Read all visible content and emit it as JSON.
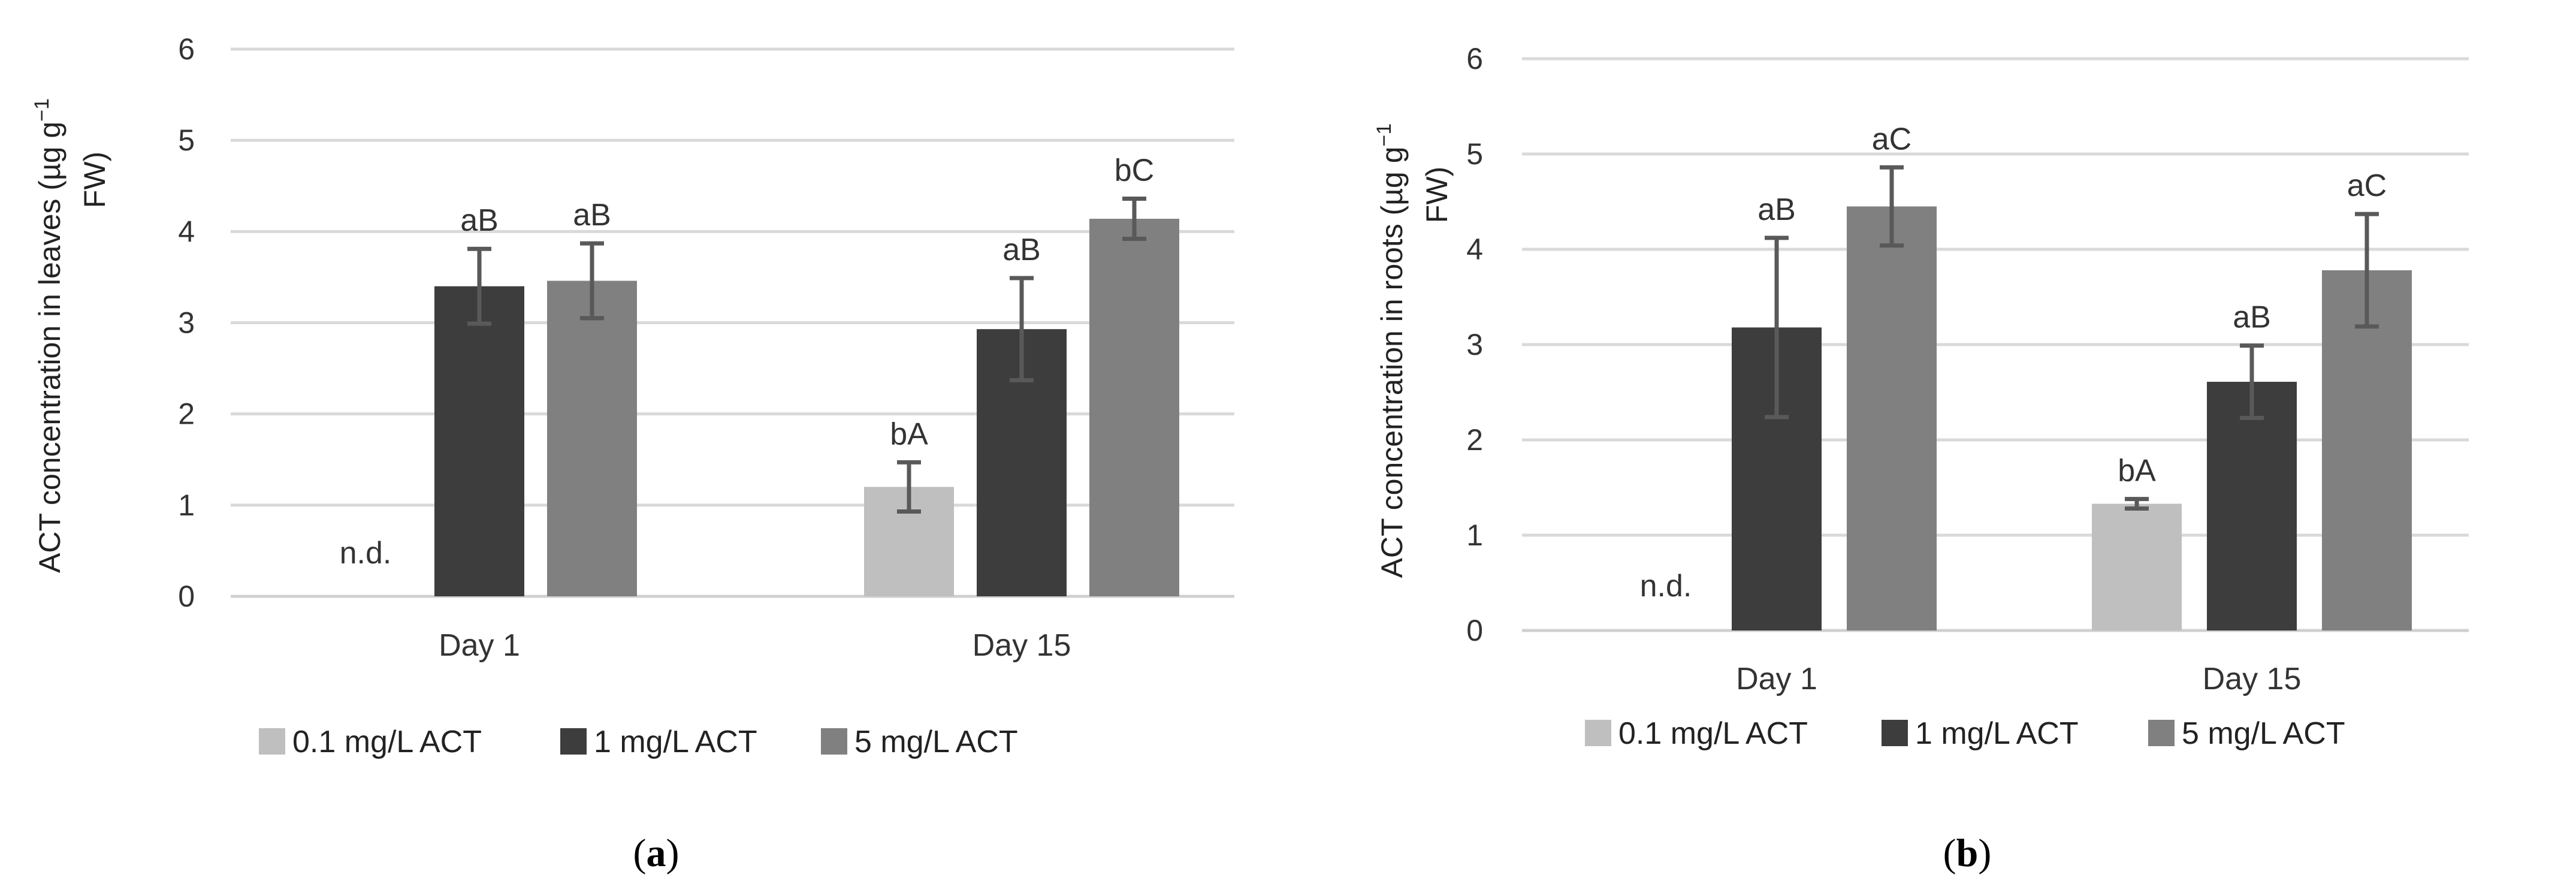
{
  "colors": {
    "s01": "#bfbfbf",
    "s1": "#3d3d3d",
    "s5": "#808080"
  },
  "chart_data": [
    {
      "type": "bar",
      "panel": "a",
      "panel_label_open": "(",
      "panel_label_letter": "a",
      "panel_label_close": ")",
      "ylabel_line1": "ACT concentration in leaves  (µg g",
      "ylabel_sup": "−1",
      "ylabel_line2": "FW)",
      "ylim": [
        0,
        6
      ],
      "yticks": [
        "0",
        "1",
        "2",
        "3",
        "4",
        "5",
        "6"
      ],
      "categories": [
        "Day 1",
        "Day 15"
      ],
      "legend_position": "bottom",
      "series": [
        {
          "name": "0.1 mg/L ACT",
          "color_key": "s01",
          "values": [
            null,
            1.2
          ],
          "errors": [
            null,
            0.27
          ],
          "labels": [
            "n.d.",
            "bA"
          ]
        },
        {
          "name": "1 mg/L ACT",
          "color_key": "s1",
          "values": [
            3.4,
            2.93
          ],
          "errors": [
            0.41,
            0.56
          ],
          "labels": [
            "aB",
            "aB"
          ]
        },
        {
          "name": "5 mg/L ACT",
          "color_key": "s5",
          "values": [
            3.46,
            4.14
          ],
          "errors": [
            0.41,
            0.22
          ],
          "labels": [
            "aB",
            "bC"
          ]
        }
      ]
    },
    {
      "type": "bar",
      "panel": "b",
      "panel_label_open": "(",
      "panel_label_letter": "b",
      "panel_label_close": ")",
      "ylabel_line1": "ACT concentration in roots  (µg g",
      "ylabel_sup": "−1",
      "ylabel_line2": "FW)",
      "ylim": [
        0,
        6
      ],
      "yticks": [
        "0",
        "1",
        "2",
        "3",
        "4",
        "5",
        "6"
      ],
      "categories": [
        "Day 1",
        "Day 15"
      ],
      "legend_position": "bottom",
      "series": [
        {
          "name": "0.1 mg/L ACT",
          "color_key": "s01",
          "values": [
            null,
            1.33
          ],
          "errors": [
            null,
            0.05
          ],
          "labels": [
            "n.d.",
            "bA"
          ]
        },
        {
          "name": "1 mg/L ACT",
          "color_key": "s1",
          "values": [
            3.18,
            2.61
          ],
          "errors": [
            0.94,
            0.38
          ],
          "labels": [
            "aB",
            "aB"
          ]
        },
        {
          "name": "5 mg/L ACT",
          "color_key": "s5",
          "values": [
            4.45,
            3.78
          ],
          "errors": [
            0.41,
            0.59
          ],
          "labels": [
            "aC",
            "aC"
          ]
        }
      ]
    }
  ]
}
